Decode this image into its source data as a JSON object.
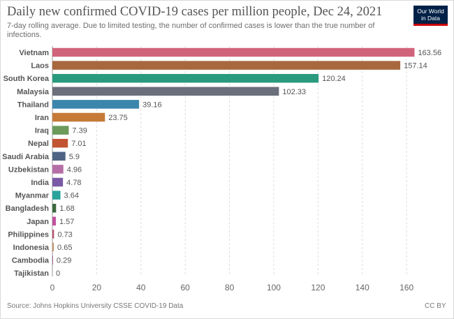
{
  "header": {
    "title": "Daily new confirmed COVID-19 cases per million people, Dec 24, 2021",
    "subtitle": "7-day rolling average. Due to limited testing, the number of confirmed cases is lower than the true number of infections."
  },
  "logo": {
    "line1": "Our World",
    "line2": "in Data",
    "bg_color": "#002147",
    "accent_color": "#cc0000"
  },
  "footer": {
    "source": "Source: Johns Hopkins University CSSE COVID-19 Data",
    "license": "CC BY"
  },
  "chart_data": {
    "type": "bar",
    "orientation": "horizontal",
    "categories": [
      "Vietnam",
      "Laos",
      "South Korea",
      "Malaysia",
      "Thailand",
      "Iran",
      "Iraq",
      "Nepal",
      "Saudi Arabia",
      "Uzbekistan",
      "India",
      "Myanmar",
      "Bangladesh",
      "Japan",
      "Philippines",
      "Indonesia",
      "Cambodia",
      "Tajikistan"
    ],
    "values": [
      163.56,
      157.14,
      120.24,
      102.33,
      39.16,
      23.75,
      7.39,
      7.01,
      5.9,
      4.96,
      4.78,
      3.64,
      1.68,
      1.57,
      0.73,
      0.65,
      0.29,
      0
    ],
    "value_labels": [
      "163.56",
      "157.14",
      "120.24",
      "102.33",
      "39.16",
      "23.75",
      "7.39",
      "7.01",
      "5.9",
      "4.96",
      "4.78",
      "3.64",
      "1.68",
      "1.57",
      "0.73",
      "0.65",
      "0.29",
      "0"
    ],
    "colors": [
      "#d0637a",
      "#a8683e",
      "#2a9a7e",
      "#6b6e7b",
      "#3b86ad",
      "#c67a38",
      "#6b9a5a",
      "#c25433",
      "#4f6384",
      "#b56fa6",
      "#7a5aa6",
      "#2aa39a",
      "#3c6a3c",
      "#c0519e",
      "#b4516c",
      "#c4956f",
      "#a0608a",
      "#888888"
    ],
    "xlim": [
      0,
      165
    ],
    "xticks": [
      0,
      20,
      40,
      60,
      80,
      100,
      120,
      140,
      160
    ],
    "grid": "vertical-dashed",
    "xlabel": "",
    "ylabel": ""
  }
}
